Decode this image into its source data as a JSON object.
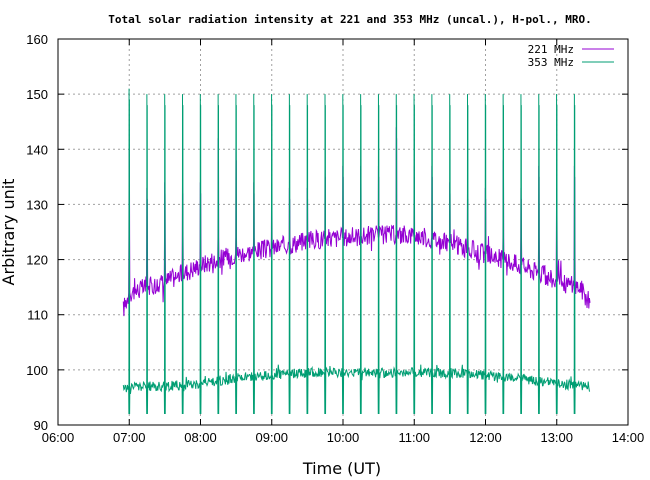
{
  "chart_data": {
    "type": "line",
    "title": "Total solar radiation intensity at 221 and 353 MHz (uncal.), H-pol., MRO.",
    "xlabel": "Time (UT)",
    "ylabel": "Arbitrary unit",
    "xlim": [
      "06:00",
      "14:00"
    ],
    "ylim": [
      90,
      160
    ],
    "x_ticks": [
      "06:00",
      "07:00",
      "08:00",
      "09:00",
      "10:00",
      "11:00",
      "12:00",
      "13:00",
      "14:00"
    ],
    "y_ticks": [
      90,
      100,
      110,
      120,
      130,
      140,
      150,
      160
    ],
    "grid": true,
    "legend_position": "top-right",
    "series": [
      {
        "name": "221 MHz",
        "color": "#9400d3",
        "start": "06:55",
        "end": "13:28",
        "baseline_points": [
          [
            "06:55",
            111
          ],
          [
            "07:00",
            114
          ],
          [
            "07:30",
            116
          ],
          [
            "08:00",
            119
          ],
          [
            "08:30",
            121
          ],
          [
            "09:00",
            122
          ],
          [
            "09:30",
            123.5
          ],
          [
            "10:00",
            124
          ],
          [
            "10:30",
            124.5
          ],
          [
            "11:00",
            124.5
          ],
          [
            "11:30",
            123
          ],
          [
            "12:00",
            121
          ],
          [
            "12:30",
            119
          ],
          [
            "13:00",
            116
          ],
          [
            "13:20",
            115
          ],
          [
            "13:28",
            112
          ]
        ],
        "calibration_spikes": [
          [
            "07:00",
            140
          ],
          [
            "07:15",
            133
          ],
          [
            "07:30",
            134
          ],
          [
            "07:45",
            134
          ],
          [
            "08:00",
            134
          ],
          [
            "08:15",
            142
          ],
          [
            "08:30",
            140
          ],
          [
            "08:45",
            134
          ],
          [
            "09:00",
            134
          ],
          [
            "09:15",
            133
          ],
          [
            "09:30",
            133
          ],
          [
            "09:45",
            137
          ],
          [
            "10:00",
            137
          ],
          [
            "10:15",
            137
          ],
          [
            "10:30",
            137
          ],
          [
            "10:45",
            144
          ],
          [
            "11:00",
            137
          ],
          [
            "11:15",
            137
          ],
          [
            "11:30",
            134
          ],
          [
            "11:45",
            133
          ],
          [
            "12:00",
            133
          ],
          [
            "12:15",
            138
          ],
          [
            "12:30",
            133
          ],
          [
            "12:45",
            137
          ],
          [
            "13:00",
            133
          ],
          [
            "13:15",
            137
          ]
        ],
        "spike_low": 124
      },
      {
        "name": "353 MHz",
        "color": "#009e73",
        "start": "06:55",
        "end": "13:28",
        "baseline_points": [
          [
            "06:55",
            96.5
          ],
          [
            "07:00",
            97
          ],
          [
            "07:30",
            97
          ],
          [
            "08:00",
            97.5
          ],
          [
            "08:30",
            98.5
          ],
          [
            "09:00",
            99
          ],
          [
            "09:30",
            99.5
          ],
          [
            "10:00",
            99.5
          ],
          [
            "10:30",
            99.5
          ],
          [
            "11:00",
            99.5
          ],
          [
            "11:30",
            99.5
          ],
          [
            "12:00",
            99
          ],
          [
            "12:30",
            98.5
          ],
          [
            "13:00",
            97.5
          ],
          [
            "13:28",
            97
          ]
        ],
        "calibration_spikes": [
          [
            "07:00",
            151
          ],
          [
            "07:15",
            150
          ],
          [
            "07:30",
            150
          ],
          [
            "07:45",
            150
          ],
          [
            "08:00",
            150
          ],
          [
            "08:15",
            150
          ],
          [
            "08:30",
            150
          ],
          [
            "08:45",
            150
          ],
          [
            "09:00",
            150
          ],
          [
            "09:15",
            150
          ],
          [
            "09:30",
            150
          ],
          [
            "09:45",
            150
          ],
          [
            "10:00",
            150
          ],
          [
            "10:15",
            150
          ],
          [
            "10:30",
            150
          ],
          [
            "10:45",
            150
          ],
          [
            "11:00",
            150
          ],
          [
            "11:15",
            150
          ],
          [
            "11:30",
            150
          ],
          [
            "11:45",
            150
          ],
          [
            "12:00",
            150
          ],
          [
            "12:15",
            150
          ],
          [
            "12:30",
            150
          ],
          [
            "12:45",
            150
          ],
          [
            "13:00",
            150
          ],
          [
            "13:15",
            150
          ]
        ],
        "spike_low": 92
      }
    ]
  }
}
